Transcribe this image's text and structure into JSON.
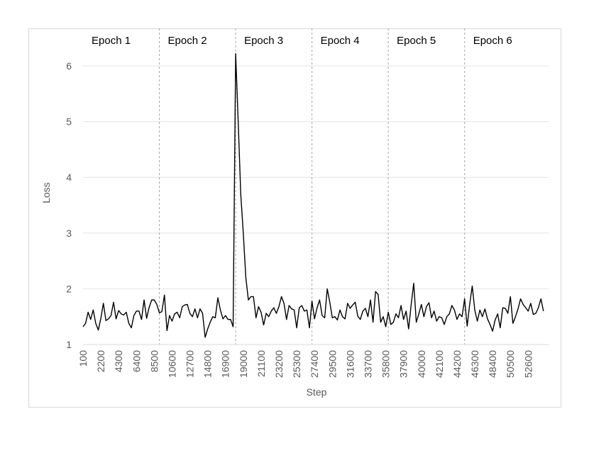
{
  "chart_data": {
    "type": "line",
    "title": "",
    "xlabel": "Step",
    "ylabel": "Loss",
    "ylim": [
      1,
      6.5
    ],
    "xlim": [
      100,
      55000
    ],
    "grid": true,
    "legend": "none",
    "y_ticks": [
      1,
      2,
      3,
      4,
      5,
      6
    ],
    "x_tick_labels": [
      "100",
      "2200",
      "4300",
      "6400",
      "8500",
      "10600",
      "12700",
      "14800",
      "16900",
      "19000",
      "21100",
      "23200",
      "25300",
      "27400",
      "29500",
      "31600",
      "33700",
      "35800",
      "37900",
      "40000",
      "42100",
      "44200",
      "46300",
      "48400",
      "50500",
      "52600"
    ],
    "x_ticks": [
      100,
      2200,
      4300,
      6400,
      8500,
      10600,
      12700,
      14800,
      16900,
      19000,
      21100,
      23200,
      25300,
      27400,
      29500,
      31600,
      33700,
      35800,
      37900,
      40000,
      42100,
      44200,
      46300,
      48400,
      50500,
      52600
    ],
    "epochs": [
      {
        "label": "Epoch 1",
        "start": 100
      },
      {
        "label": "Epoch 2",
        "start": 9100
      },
      {
        "label": "Epoch 3",
        "start": 18100
      },
      {
        "label": "Epoch 4",
        "start": 27100
      },
      {
        "label": "Epoch 5",
        "start": 36100
      },
      {
        "label": "Epoch 6",
        "start": 45100
      }
    ],
    "epoch_boundaries": [
      9100,
      18100,
      27100,
      36100,
      45100
    ],
    "line_color": "#000000",
    "series": [
      {
        "x_start": 100,
        "x_step": 300,
        "values": [
          1.32,
          1.38,
          1.58,
          1.45,
          1.62,
          1.38,
          1.26,
          1.47,
          1.74,
          1.43,
          1.46,
          1.52,
          1.76,
          1.46,
          1.61,
          1.55,
          1.53,
          1.58,
          1.38,
          1.3,
          1.52,
          1.6,
          1.6,
          1.45,
          1.8,
          1.47,
          1.67,
          1.8,
          1.8,
          1.72,
          1.57,
          1.59,
          1.89,
          1.25,
          1.52,
          1.42,
          1.55,
          1.58,
          1.48,
          1.68,
          1.71,
          1.72,
          1.56,
          1.5,
          1.64,
          1.48,
          1.64,
          1.56,
          1.13,
          1.28,
          1.4,
          1.5,
          1.48,
          1.84,
          1.62,
          1.46,
          1.52,
          1.45,
          1.45,
          1.32,
          6.22,
          5.0,
          3.7,
          3.0,
          2.2,
          1.8,
          1.86,
          1.86,
          1.48,
          1.68,
          1.58,
          1.35,
          1.56,
          1.5,
          1.6,
          1.66,
          1.56,
          1.68,
          1.86,
          1.74,
          1.45,
          1.7,
          1.64,
          1.62,
          1.3,
          1.66,
          1.7,
          1.6,
          1.62,
          1.3,
          1.78,
          1.46,
          1.66,
          1.8,
          1.52,
          1.48,
          2.0,
          1.76,
          1.48,
          1.5,
          1.44,
          1.62,
          1.5,
          1.46,
          1.74,
          1.65,
          1.71,
          1.76,
          1.51,
          1.45,
          1.6,
          1.65,
          1.5,
          1.8,
          1.4,
          1.95,
          1.9,
          1.4,
          1.5,
          1.32,
          1.58,
          1.36,
          1.4,
          1.55,
          1.48,
          1.7,
          1.45,
          1.6,
          1.28,
          1.72,
          2.1,
          1.4,
          1.55,
          1.72,
          1.5,
          1.68,
          1.75,
          1.48,
          1.6,
          1.42,
          1.5,
          1.48,
          1.36,
          1.5,
          1.55,
          1.7,
          1.62,
          1.45,
          1.55,
          1.5,
          1.82,
          1.33,
          1.72,
          2.05,
          1.62,
          1.42,
          1.62,
          1.5,
          1.64,
          1.46,
          1.36,
          1.24,
          1.44,
          1.55,
          1.3,
          1.66,
          1.65,
          1.56,
          1.86,
          1.38,
          1.5,
          1.64,
          1.82,
          1.72,
          1.66,
          1.6,
          1.74,
          1.54,
          1.56,
          1.66,
          1.82,
          1.6
        ]
      }
    ]
  }
}
